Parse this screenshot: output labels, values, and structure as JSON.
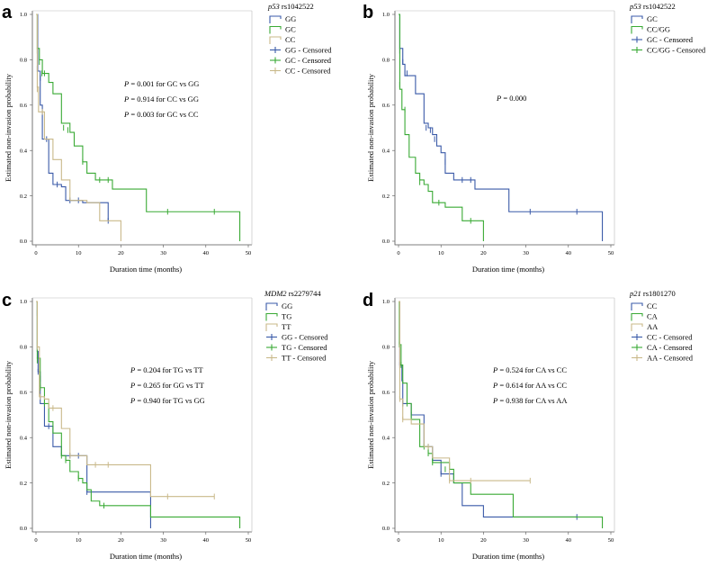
{
  "colors": {
    "blue": "#3a5aa8",
    "green": "#3aaa35",
    "tan": "#c9b98a",
    "axis": "#555555"
  },
  "chart_data": [
    {
      "type": "line",
      "subtype": "kaplan-meier",
      "panel": "a",
      "title_gene": "p53",
      "title_snp": "rs1042522",
      "xlabel": "Duration time (months)",
      "ylabel": "Estimated non-invasion probability",
      "xlim": [
        0,
        50
      ],
      "ylim": [
        0,
        1.0
      ],
      "xticks": [
        "0",
        "10",
        "20",
        "30",
        "40",
        "50"
      ],
      "yticks": [
        "0.0",
        "0.2",
        "0.4",
        "0.6",
        "0.8",
        "1.0"
      ],
      "legend": [
        "GG",
        "GC",
        "CC",
        "GG - Censored",
        "GC - Censored",
        "CC - Censored"
      ],
      "pvalues": [
        {
          "p": "P",
          "text": " = 0.001 for GC vs GG"
        },
        {
          "p": "P",
          "text": " = 0.914 for CC vs GG"
        },
        {
          "p": "P",
          "text": " = 0.003 for GC vs CC"
        }
      ],
      "series": [
        {
          "name": "GG",
          "color": "blue",
          "steps": [
            [
              0,
              1.0
            ],
            [
              0.4,
              0.75
            ],
            [
              1,
              0.6
            ],
            [
              1.5,
              0.45
            ],
            [
              3,
              0.3
            ],
            [
              4,
              0.25
            ],
            [
              6,
              0.24
            ],
            [
              7,
              0.18
            ],
            [
              10,
              0.18
            ],
            [
              11,
              0.17
            ],
            [
              17,
              0.09
            ]
          ],
          "censored": [
            [
              0.3,
              0.76
            ],
            [
              1,
              0.72
            ],
            [
              2.5,
              0.45
            ],
            [
              5,
              0.25
            ],
            [
              8,
              0.18
            ],
            [
              10,
              0.18
            ],
            [
              17,
              0.09
            ]
          ]
        },
        {
          "name": "GC",
          "color": "green",
          "steps": [
            [
              0,
              1.0
            ],
            [
              0.3,
              0.85
            ],
            [
              0.8,
              0.8
            ],
            [
              1.5,
              0.74
            ],
            [
              3,
              0.7
            ],
            [
              4,
              0.65
            ],
            [
              6,
              0.52
            ],
            [
              8,
              0.48
            ],
            [
              9,
              0.42
            ],
            [
              11,
              0.35
            ],
            [
              12,
              0.3
            ],
            [
              14,
              0.27
            ],
            [
              18,
              0.23
            ],
            [
              26,
              0.13
            ],
            [
              48,
              0.0
            ]
          ],
          "censored": [
            [
              0.3,
              0.84
            ],
            [
              0.8,
              0.79
            ],
            [
              1.4,
              0.74
            ],
            [
              2,
              0.74
            ],
            [
              6.5,
              0.5
            ],
            [
              7.5,
              0.49
            ],
            [
              11,
              0.35
            ],
            [
              15,
              0.27
            ],
            [
              17,
              0.27
            ],
            [
              31,
              0.13
            ],
            [
              42,
              0.13
            ]
          ]
        },
        {
          "name": "CC",
          "color": "tan",
          "steps": [
            [
              0,
              1.0
            ],
            [
              0.3,
              0.68
            ],
            [
              0.6,
              0.57
            ],
            [
              2,
              0.45
            ],
            [
              4,
              0.36
            ],
            [
              6,
              0.27
            ],
            [
              8,
              0.18
            ],
            [
              12,
              0.17
            ],
            [
              15,
              0.09
            ],
            [
              20,
              0.0
            ]
          ],
          "censored": [
            [
              0.3,
              0.67
            ],
            [
              1.5,
              0.57
            ]
          ]
        }
      ]
    },
    {
      "type": "line",
      "subtype": "kaplan-meier",
      "panel": "b",
      "title_gene": "p53",
      "title_snp": "rs1042522",
      "xlabel": "Duration time (months)",
      "ylabel": "Estimated non-invasion probability",
      "xlim": [
        0,
        50
      ],
      "ylim": [
        0,
        1.0
      ],
      "xticks": [
        "0",
        "10",
        "20",
        "30",
        "40",
        "50"
      ],
      "yticks": [
        "0.0",
        "0.2",
        "0.4",
        "0.6",
        "0.8",
        "1.0"
      ],
      "legend": [
        "GC",
        "CC/GG",
        "GC - Censored",
        "CC/GG - Censored"
      ],
      "pvalues": [
        {
          "p": "P",
          "text": " = 0.000"
        }
      ],
      "series": [
        {
          "name": "GC",
          "color": "blue",
          "steps": [
            [
              0,
              1.0
            ],
            [
              0.3,
              0.85
            ],
            [
              1,
              0.78
            ],
            [
              1.5,
              0.73
            ],
            [
              4,
              0.65
            ],
            [
              6,
              0.52
            ],
            [
              7,
              0.5
            ],
            [
              8,
              0.47
            ],
            [
              9,
              0.42
            ],
            [
              10,
              0.39
            ],
            [
              11,
              0.3
            ],
            [
              13,
              0.27
            ],
            [
              18,
              0.23
            ],
            [
              26,
              0.13
            ],
            [
              48,
              0.0
            ]
          ],
          "censored": [
            [
              0.3,
              0.84
            ],
            [
              1,
              0.79
            ],
            [
              1.5,
              0.74
            ],
            [
              2,
              0.74
            ],
            [
              6.5,
              0.5
            ],
            [
              7.5,
              0.49
            ],
            [
              8.5,
              0.45
            ],
            [
              11,
              0.35
            ],
            [
              15,
              0.27
            ],
            [
              17,
              0.27
            ],
            [
              31,
              0.13
            ],
            [
              42,
              0.13
            ]
          ]
        },
        {
          "name": "CC/GG",
          "color": "green",
          "steps": [
            [
              0,
              1.0
            ],
            [
              0.3,
              0.67
            ],
            [
              0.8,
              0.58
            ],
            [
              1.5,
              0.47
            ],
            [
              2.5,
              0.37
            ],
            [
              4,
              0.3
            ],
            [
              5,
              0.27
            ],
            [
              6,
              0.25
            ],
            [
              7,
              0.22
            ],
            [
              8,
              0.17
            ],
            [
              10,
              0.17
            ],
            [
              11,
              0.15
            ],
            [
              15,
              0.09
            ],
            [
              20,
              0.0
            ]
          ],
          "censored": [
            [
              0.3,
              0.69
            ],
            [
              1.5,
              0.58
            ],
            [
              5,
              0.26
            ],
            [
              9.5,
              0.17
            ],
            [
              17,
              0.09
            ]
          ]
        }
      ]
    },
    {
      "type": "line",
      "subtype": "kaplan-meier",
      "panel": "c",
      "title_gene": "MDM2",
      "title_snp": "rs2279744",
      "xlabel": "Duration time (months)",
      "ylabel": "Estimated non-invasion probability",
      "xlim": [
        0,
        50
      ],
      "ylim": [
        0,
        1.0
      ],
      "xticks": [
        "0",
        "10",
        "20",
        "30",
        "40",
        "50"
      ],
      "yticks": [
        "0.0",
        "0.2",
        "0.4",
        "0.6",
        "0.8",
        "1.0"
      ],
      "legend": [
        "GG",
        "TG",
        "TT",
        "GG - Censored",
        "TG - Censored",
        "TT - Censored"
      ],
      "pvalues": [
        {
          "p": "P",
          "text": " = 0.204 for TG vs TT"
        },
        {
          "p": "P",
          "text": " = 0.265 for GG vs TT"
        },
        {
          "p": "P",
          "text": " = 0.940 for TG vs GG"
        }
      ],
      "series": [
        {
          "name": "GG",
          "color": "blue",
          "steps": [
            [
              0,
              1.0
            ],
            [
              0.3,
              0.78
            ],
            [
              0.5,
              0.69
            ],
            [
              1,
              0.55
            ],
            [
              2,
              0.45
            ],
            [
              4,
              0.36
            ],
            [
              6,
              0.32
            ],
            [
              12,
              0.16
            ],
            [
              27,
              0.0
            ]
          ],
          "censored": [
            [
              0.3,
              0.95
            ],
            [
              0.5,
              0.69
            ],
            [
              1,
              0.66
            ],
            [
              3,
              0.45
            ],
            [
              8,
              0.32
            ],
            [
              10,
              0.32
            ],
            [
              12,
              0.16
            ]
          ]
        },
        {
          "name": "TG",
          "color": "green",
          "steps": [
            [
              0,
              1.0
            ],
            [
              0.3,
              0.75
            ],
            [
              1,
              0.62
            ],
            [
              2,
              0.55
            ],
            [
              3,
              0.47
            ],
            [
              4,
              0.42
            ],
            [
              6,
              0.32
            ],
            [
              7,
              0.3
            ],
            [
              8,
              0.25
            ],
            [
              10,
              0.22
            ],
            [
              11,
              0.2
            ],
            [
              12,
              0.17
            ],
            [
              13,
              0.12
            ],
            [
              15,
              0.1
            ],
            [
              27,
              0.05
            ],
            [
              48,
              0.0
            ]
          ],
          "censored": [
            [
              0.3,
              0.74
            ],
            [
              1,
              0.62
            ],
            [
              2,
              0.55
            ],
            [
              6,
              0.32
            ],
            [
              7,
              0.3
            ],
            [
              10,
              0.22
            ],
            [
              16,
              0.1
            ]
          ]
        },
        {
          "name": "TT",
          "color": "tan",
          "steps": [
            [
              0,
              1.0
            ],
            [
              0.3,
              0.8
            ],
            [
              0.8,
              0.58
            ],
            [
              2,
              0.57
            ],
            [
              3,
              0.53
            ],
            [
              6,
              0.44
            ],
            [
              8,
              0.32
            ],
            [
              12,
              0.28
            ],
            [
              19,
              0.28
            ],
            [
              27,
              0.14
            ],
            [
              42,
              0.14
            ]
          ],
          "censored": [
            [
              0.3,
              0.8
            ],
            [
              1,
              0.58
            ],
            [
              4,
              0.53
            ],
            [
              8,
              0.32
            ],
            [
              14,
              0.28
            ],
            [
              17,
              0.28
            ],
            [
              31,
              0.14
            ],
            [
              42,
              0.14
            ]
          ]
        }
      ]
    },
    {
      "type": "line",
      "subtype": "kaplan-meier",
      "panel": "d",
      "title_gene": "p21",
      "title_snp": "rs1801270",
      "xlabel": "Duration time (months)",
      "ylabel": "Estimated non-invasion probability",
      "xlim": [
        0,
        50
      ],
      "ylim": [
        0,
        1.0
      ],
      "xticks": [
        "0",
        "10",
        "20",
        "30",
        "40",
        "50"
      ],
      "yticks": [
        "0.0",
        "0.2",
        "0.4",
        "0.6",
        "0.8",
        "1.0"
      ],
      "legend": [
        "CC",
        "CA",
        "AA",
        "CC - Censored",
        "CA - Censored",
        "AA - Censored"
      ],
      "pvalues": [
        {
          "p": "P",
          "text": " = 0.524 for CA vs CC"
        },
        {
          "p": "P",
          "text": " = 0.614 for AA vs CC"
        },
        {
          "p": "P",
          "text": " = 0.938 for CA vs AA"
        }
      ],
      "series": [
        {
          "name": "CC",
          "color": "blue",
          "steps": [
            [
              0,
              1.0
            ],
            [
              0.3,
              0.72
            ],
            [
              0.8,
              0.65
            ],
            [
              1,
              0.55
            ],
            [
              3,
              0.5
            ],
            [
              6,
              0.36
            ],
            [
              8,
              0.3
            ],
            [
              10,
              0.24
            ],
            [
              13,
              0.2
            ],
            [
              15,
              0.1
            ],
            [
              20,
              0.05
            ],
            [
              42,
              0.05
            ]
          ],
          "censored": [
            [
              0.3,
              0.72
            ],
            [
              1,
              0.55
            ],
            [
              3,
              0.5
            ],
            [
              7,
              0.36
            ],
            [
              10,
              0.24
            ],
            [
              42,
              0.05
            ]
          ]
        },
        {
          "name": "CA",
          "color": "green",
          "steps": [
            [
              0,
              1.0
            ],
            [
              0.2,
              0.81
            ],
            [
              0.6,
              0.72
            ],
            [
              1,
              0.64
            ],
            [
              2,
              0.55
            ],
            [
              3,
              0.48
            ],
            [
              5,
              0.36
            ],
            [
              7,
              0.33
            ],
            [
              8,
              0.29
            ],
            [
              12,
              0.26
            ],
            [
              13,
              0.2
            ],
            [
              17,
              0.15
            ],
            [
              27,
              0.05
            ],
            [
              48,
              0.0
            ]
          ],
          "censored": [
            [
              0.2,
              0.81
            ],
            [
              0.6,
              0.72
            ],
            [
              2,
              0.55
            ],
            [
              6,
              0.36
            ],
            [
              7,
              0.33
            ],
            [
              8,
              0.29
            ],
            [
              11,
              0.26
            ]
          ]
        },
        {
          "name": "AA",
          "color": "tan",
          "steps": [
            [
              0,
              1.0
            ],
            [
              0.3,
              0.57
            ],
            [
              1,
              0.48
            ],
            [
              3,
              0.46
            ],
            [
              6,
              0.36
            ],
            [
              8,
              0.31
            ],
            [
              12,
              0.21
            ],
            [
              31,
              0.21
            ]
          ],
          "censored": [
            [
              0.3,
              0.57
            ],
            [
              1,
              0.48
            ],
            [
              7,
              0.36
            ],
            [
              12,
              0.21
            ],
            [
              17,
              0.21
            ],
            [
              31,
              0.21
            ]
          ]
        }
      ]
    }
  ]
}
